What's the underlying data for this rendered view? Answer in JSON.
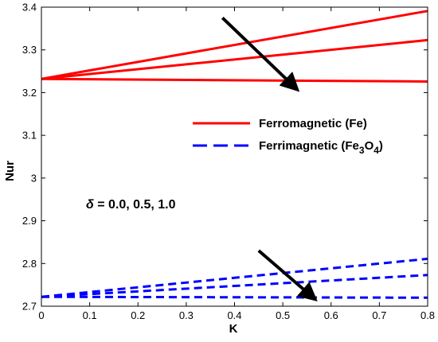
{
  "chart_data": {
    "type": "line",
    "xlabel": "K",
    "ylabel": "Nur",
    "xlim": [
      0,
      0.8
    ],
    "ylim": [
      2.7,
      3.4
    ],
    "xticks": [
      "0",
      "0.1",
      "0.2",
      "0.3",
      "0.4",
      "0.5",
      "0.6",
      "0.7",
      "0.8"
    ],
    "yticks": [
      "2.7",
      "2.8",
      "2.9",
      "3",
      "3.1",
      "3.2",
      "3.3",
      "3.4"
    ],
    "grid": false,
    "legend_position": "center-right",
    "legend": [
      {
        "label_main": "Ferromagnetic (Fe)",
        "label_parts": [],
        "color": "#ff0000",
        "dash": "solid"
      },
      {
        "label_main": "Ferrimagnetic (Fe",
        "label_parts": [
          {
            "text": "3",
            "shift": "sub"
          },
          {
            "text": "O",
            "shift": "base"
          },
          {
            "text": "4",
            "shift": "sub"
          },
          {
            "text": ")",
            "shift": "base"
          }
        ],
        "color": "#0000ff",
        "dash": "dashed"
      }
    ],
    "annotation": {
      "symbol": "δ",
      "text": " = 0.0, 0.5, 1.0"
    },
    "series": [
      {
        "group": "Ferromagnetic (Fe)",
        "color": "#ff0000",
        "dash": "solid",
        "x": [
          0,
          0.8
        ],
        "y": [
          3.232,
          3.391
        ]
      },
      {
        "group": "Ferromagnetic (Fe)",
        "color": "#ff0000",
        "dash": "solid",
        "x": [
          0,
          0.8
        ],
        "y": [
          3.232,
          3.323
        ]
      },
      {
        "group": "Ferromagnetic (Fe)",
        "color": "#ff0000",
        "dash": "solid",
        "x": [
          0,
          0.8
        ],
        "y": [
          3.232,
          3.226
        ]
      },
      {
        "group": "Ferrimagnetic (Fe3O4)",
        "color": "#0000ff",
        "dash": "dashed",
        "x": [
          0,
          0.8
        ],
        "y": [
          2.722,
          2.811
        ]
      },
      {
        "group": "Ferrimagnetic (Fe3O4)",
        "color": "#0000ff",
        "dash": "dashed",
        "x": [
          0,
          0.8
        ],
        "y": [
          2.722,
          2.773
        ]
      },
      {
        "group": "Ferrimagnetic (Fe3O4)",
        "color": "#0000ff",
        "dash": "dashed",
        "x": [
          0,
          0.8
        ],
        "y": [
          2.722,
          2.72
        ]
      }
    ],
    "arrows": [
      {
        "from": [
          0.375,
          3.375
        ],
        "to": [
          0.53,
          3.207
        ]
      },
      {
        "from": [
          0.45,
          2.83
        ],
        "to": [
          0.567,
          2.716
        ]
      }
    ]
  }
}
